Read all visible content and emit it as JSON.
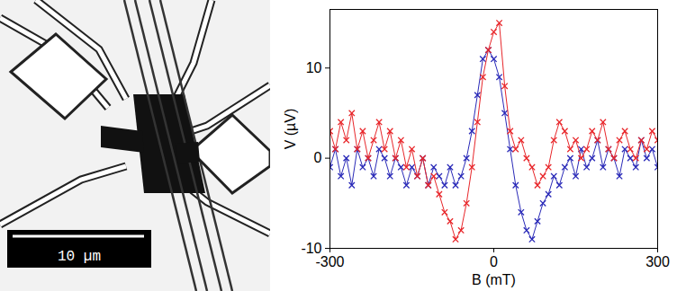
{
  "micrograph": {
    "scale_bar": "10 µm"
  },
  "chart_data": {
    "type": "line",
    "marker": "x",
    "x_label": "B (mT)",
    "y_label": "V (µV)",
    "xlim": [
      -300,
      300
    ],
    "xticks": [
      -300,
      0,
      300
    ],
    "ylim": [
      -10,
      16.5
    ],
    "yticks": [
      -10,
      0,
      10
    ],
    "x": [
      -300,
      -290,
      -280,
      -270,
      -260,
      -250,
      -240,
      -230,
      -220,
      -210,
      -200,
      -190,
      -180,
      -170,
      -160,
      -150,
      -140,
      -130,
      -120,
      -110,
      -100,
      -90,
      -80,
      -70,
      -60,
      -50,
      -40,
      -30,
      -20,
      -10,
      0,
      10,
      20,
      30,
      40,
      50,
      60,
      70,
      80,
      90,
      100,
      110,
      120,
      130,
      140,
      150,
      160,
      170,
      180,
      190,
      200,
      210,
      220,
      230,
      240,
      250,
      260,
      270,
      280,
      290,
      300
    ],
    "series": [
      {
        "color": "#2a2ab8",
        "values": [
          -1,
          1,
          -2,
          0,
          -3,
          1,
          -1,
          0,
          -2,
          1,
          0,
          -2,
          0,
          -1,
          -3,
          -1,
          -2,
          0,
          -3,
          -1,
          -2,
          -3,
          -1,
          -3,
          -2,
          0,
          3,
          7,
          11,
          12,
          11,
          9,
          5,
          1,
          -3,
          -6,
          -8,
          -9,
          -7,
          -5,
          -4,
          -2,
          -3,
          -1,
          0,
          -2,
          1,
          -1,
          0,
          2,
          -1,
          1,
          0,
          -2,
          1,
          0,
          -1,
          2,
          0,
          1,
          -1
        ]
      },
      {
        "color": "#e8262a",
        "values": [
          3,
          1,
          4,
          2,
          5,
          1,
          3,
          0,
          2,
          4,
          1,
          3,
          0,
          2,
          -1,
          1,
          -2,
          0,
          -3,
          -2,
          -4,
          -6,
          -7,
          -9,
          -8,
          -5,
          -1,
          4,
          9,
          12,
          14,
          15,
          8,
          3,
          1,
          2,
          0,
          -1,
          -3,
          -2,
          -1,
          2,
          4,
          3,
          1,
          2,
          0,
          1,
          3,
          2,
          4,
          1,
          0,
          2,
          3,
          1,
          0,
          2,
          1,
          3,
          2
        ]
      }
    ]
  }
}
